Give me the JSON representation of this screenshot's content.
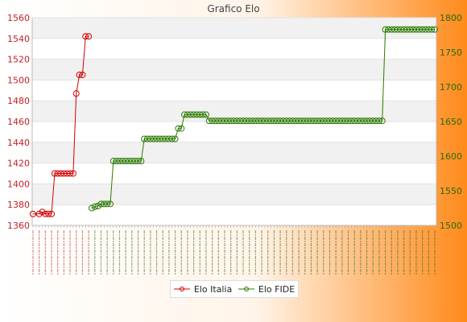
{
  "chart_data": {
    "type": "line",
    "title": "Grafico Elo",
    "y_left": {
      "ylim": [
        1360,
        1560
      ],
      "ticks": [
        1360,
        1380,
        1400,
        1420,
        1440,
        1460,
        1480,
        1500,
        1520,
        1540,
        1560
      ],
      "color": "#d40000"
    },
    "y_right": {
      "ylim": [
        1500,
        1800
      ],
      "ticks": [
        1500,
        1550,
        1600,
        1650,
        1700,
        1750,
        1800
      ],
      "color": "#2a7a00"
    },
    "x_count": 120,
    "legend_position": "bottom",
    "grid": true,
    "series": [
      {
        "name": "Elo Italia",
        "axis": "left",
        "color": "#d40000",
        "points": [
          [
            0,
            1371
          ],
          [
            2,
            1371
          ],
          [
            3,
            1373
          ],
          [
            4,
            1371
          ],
          [
            5,
            1371
          ],
          [
            6,
            1371
          ],
          [
            7,
            1410
          ],
          [
            8,
            1410
          ],
          [
            9,
            1410
          ],
          [
            10,
            1410
          ],
          [
            11,
            1410
          ],
          [
            12,
            1410
          ],
          [
            13,
            1410
          ],
          [
            14,
            1487
          ],
          [
            15,
            1505
          ],
          [
            16,
            1505
          ],
          [
            17,
            1542
          ],
          [
            18,
            1542
          ]
        ]
      },
      {
        "name": "Elo FIDE",
        "axis": "right",
        "color": "#2a7a00",
        "points": [
          [
            19,
            1525
          ],
          [
            20,
            1527
          ],
          [
            21,
            1528
          ],
          [
            22,
            1531
          ],
          [
            23,
            1531
          ],
          [
            24,
            1531
          ],
          [
            25,
            1531
          ],
          [
            26,
            1593
          ],
          [
            27,
            1593
          ],
          [
            28,
            1593
          ],
          [
            29,
            1593
          ],
          [
            30,
            1593
          ],
          [
            31,
            1593
          ],
          [
            32,
            1593
          ],
          [
            33,
            1593
          ],
          [
            34,
            1593
          ],
          [
            35,
            1593
          ],
          [
            36,
            1625
          ],
          [
            37,
            1625
          ],
          [
            38,
            1625
          ],
          [
            39,
            1625
          ],
          [
            40,
            1625
          ],
          [
            41,
            1625
          ],
          [
            42,
            1625
          ],
          [
            43,
            1625
          ],
          [
            44,
            1625
          ],
          [
            45,
            1625
          ],
          [
            46,
            1625
          ],
          [
            47,
            1640
          ],
          [
            48,
            1640
          ],
          [
            49,
            1660
          ],
          [
            50,
            1660
          ],
          [
            51,
            1660
          ],
          [
            52,
            1660
          ],
          [
            53,
            1660
          ],
          [
            54,
            1660
          ],
          [
            55,
            1660
          ],
          [
            56,
            1660
          ],
          [
            57,
            1651
          ],
          [
            58,
            1651
          ],
          [
            59,
            1651
          ],
          [
            60,
            1651
          ],
          [
            61,
            1651
          ],
          [
            62,
            1651
          ],
          [
            63,
            1651
          ],
          [
            64,
            1651
          ],
          [
            65,
            1651
          ],
          [
            66,
            1651
          ],
          [
            67,
            1651
          ],
          [
            68,
            1651
          ],
          [
            69,
            1651
          ],
          [
            70,
            1651
          ],
          [
            71,
            1651
          ],
          [
            72,
            1651
          ],
          [
            73,
            1651
          ],
          [
            74,
            1651
          ],
          [
            75,
            1651
          ],
          [
            76,
            1651
          ],
          [
            77,
            1651
          ],
          [
            78,
            1651
          ],
          [
            79,
            1651
          ],
          [
            80,
            1651
          ],
          [
            81,
            1651
          ],
          [
            82,
            1651
          ],
          [
            83,
            1651
          ],
          [
            84,
            1651
          ],
          [
            85,
            1651
          ],
          [
            86,
            1651
          ],
          [
            87,
            1651
          ],
          [
            88,
            1651
          ],
          [
            89,
            1651
          ],
          [
            90,
            1651
          ],
          [
            91,
            1651
          ],
          [
            92,
            1651
          ],
          [
            93,
            1651
          ],
          [
            94,
            1651
          ],
          [
            95,
            1651
          ],
          [
            96,
            1651
          ],
          [
            97,
            1651
          ],
          [
            98,
            1651
          ],
          [
            99,
            1651
          ],
          [
            100,
            1651
          ],
          [
            101,
            1651
          ],
          [
            102,
            1651
          ],
          [
            103,
            1651
          ],
          [
            104,
            1651
          ],
          [
            105,
            1651
          ],
          [
            106,
            1651
          ],
          [
            107,
            1651
          ],
          [
            108,
            1651
          ],
          [
            109,
            1651
          ],
          [
            110,
            1651
          ],
          [
            111,
            1651
          ],
          [
            112,
            1651
          ],
          [
            113,
            1651
          ],
          [
            114,
            1783
          ],
          [
            115,
            1783
          ],
          [
            116,
            1783
          ],
          [
            117,
            1783
          ],
          [
            118,
            1783
          ],
          [
            119,
            1783
          ],
          [
            120,
            1783
          ],
          [
            121,
            1783
          ],
          [
            122,
            1783
          ],
          [
            123,
            1783
          ],
          [
            124,
            1783
          ],
          [
            125,
            1783
          ],
          [
            126,
            1783
          ],
          [
            127,
            1783
          ],
          [
            128,
            1783
          ],
          [
            129,
            1783
          ],
          [
            130,
            1783
          ]
        ]
      }
    ]
  }
}
